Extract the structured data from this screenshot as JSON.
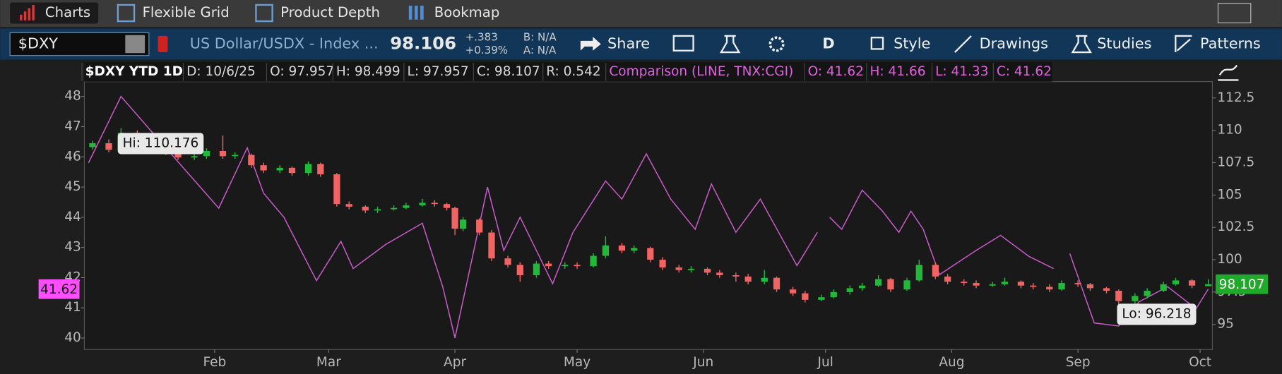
{
  "tabs": [
    "Charts",
    "Flexible Grid",
    "Product Depth",
    "Bookmap"
  ],
  "toolbar": {
    "symbol": "$DXY",
    "description": "US Dollar/USDX - Index ...",
    "last": "98.106",
    "change": "+.383",
    "change_pct": "+0.39%",
    "bid": "B: N/A",
    "ask": "A: N/A",
    "buttons": [
      "Share",
      "D",
      "Style",
      "Drawings",
      "Studies",
      "Patterns"
    ]
  },
  "header": {
    "date": "D: 10/6/25",
    "open": "O: 97.957",
    "high": "H: 98.499",
    "low": "L: 97.957",
    "close": "C: 98.107",
    "range": "R: 0.542",
    "cmp_open": "O: 41.62",
    "cmp_high": "H: 41.66",
    "cmp_low": "L: 41.33",
    "cmp_close": "C: 41.62"
  },
  "chart_data": {
    "type": "candlestick",
    "title": "$DXY YTD 1D",
    "up_color": "#22b83a",
    "down_color": "#f06464",
    "x": [
      2,
      6,
      9,
      13,
      16,
      20,
      23,
      27,
      30,
      34,
      37,
      41,
      44,
      48,
      51,
      55,
      58,
      62,
      65,
      69,
      72,
      76,
      79,
      83,
      86,
      89,
      91,
      93,
      97,
      100,
      104,
      107,
      111,
      114,
      118,
      121,
      125,
      128,
      132,
      135,
      139,
      142,
      146,
      149,
      153,
      156,
      160,
      163,
      167,
      170,
      174,
      177,
      181,
      184,
      188,
      191,
      195,
      198,
      202,
      205,
      209,
      212,
      216,
      219,
      223,
      226,
      230,
      233,
      237,
      240,
      244,
      247,
      251,
      254,
      258,
      261,
      265,
      268,
      272,
      276
    ],
    "candles": [
      [
        108.7,
        109.2,
        108.5,
        109.0
      ],
      [
        109.0,
        109.3,
        108.3,
        108.5
      ],
      [
        108.5,
        110.176,
        108.4,
        109.8
      ],
      [
        109.8,
        110.0,
        109.2,
        109.4
      ],
      [
        109.4,
        109.6,
        108.8,
        109.0
      ],
      [
        109.0,
        109.2,
        108.1,
        108.3
      ],
      [
        108.3,
        108.5,
        107.7,
        107.9
      ],
      [
        107.9,
        108.3,
        107.7,
        108.0
      ],
      [
        108.0,
        108.6,
        107.8,
        108.4
      ],
      [
        108.4,
        109.6,
        107.8,
        108.0
      ],
      [
        108.0,
        108.3,
        107.8,
        108.1
      ],
      [
        108.1,
        108.2,
        107.1,
        107.3
      ],
      [
        107.3,
        107.5,
        106.7,
        106.9
      ],
      [
        106.9,
        107.3,
        106.7,
        107.1
      ],
      [
        107.1,
        107.2,
        106.5,
        106.7
      ],
      [
        106.7,
        107.6,
        106.5,
        107.4
      ],
      [
        107.4,
        107.5,
        106.4,
        106.6
      ],
      [
        106.6,
        106.7,
        104.1,
        104.3
      ],
      [
        104.3,
        104.5,
        103.9,
        104.1
      ],
      [
        104.1,
        104.2,
        103.6,
        103.8
      ],
      [
        103.8,
        104.1,
        103.6,
        103.9
      ],
      [
        103.9,
        104.2,
        103.8,
        104.0
      ],
      [
        104.0,
        104.4,
        103.9,
        104.2
      ],
      [
        104.2,
        104.7,
        104.1,
        104.4
      ],
      [
        104.4,
        104.6,
        104.1,
        104.3
      ],
      [
        104.3,
        104.4,
        103.8,
        104.0
      ],
      [
        104.0,
        104.1,
        101.9,
        102.4
      ],
      [
        102.4,
        103.3,
        102.2,
        103.1
      ],
      [
        103.1,
        103.2,
        101.9,
        102.1
      ],
      [
        102.1,
        102.3,
        99.9,
        100.1
      ],
      [
        100.1,
        100.3,
        99.4,
        99.6
      ],
      [
        99.6,
        99.8,
        98.3,
        98.8
      ],
      [
        98.8,
        99.9,
        98.6,
        99.7
      ],
      [
        99.7,
        99.9,
        99.3,
        99.5
      ],
      [
        99.5,
        99.8,
        99.3,
        99.6
      ],
      [
        99.6,
        99.8,
        99.3,
        99.5
      ],
      [
        99.5,
        100.5,
        99.4,
        100.3
      ],
      [
        100.3,
        101.8,
        100.1,
        101.1
      ],
      [
        101.1,
        101.3,
        100.5,
        100.7
      ],
      [
        100.7,
        101.1,
        100.5,
        100.9
      ],
      [
        100.9,
        101.0,
        99.8,
        100.0
      ],
      [
        100.0,
        100.2,
        99.2,
        99.4
      ],
      [
        99.4,
        99.6,
        99.0,
        99.2
      ],
      [
        99.2,
        99.5,
        99.0,
        99.3
      ],
      [
        99.3,
        99.4,
        98.8,
        99.0
      ],
      [
        99.0,
        99.2,
        98.6,
        98.8
      ],
      [
        98.8,
        99.0,
        98.3,
        98.7
      ],
      [
        98.7,
        98.9,
        98.1,
        98.3
      ],
      [
        98.3,
        99.2,
        98.1,
        98.6
      ],
      [
        98.6,
        98.7,
        97.5,
        97.7
      ],
      [
        97.7,
        97.9,
        97.2,
        97.4
      ],
      [
        97.4,
        97.6,
        96.7,
        96.9
      ],
      [
        96.9,
        97.3,
        96.8,
        97.1
      ],
      [
        97.1,
        97.7,
        97.0,
        97.5
      ],
      [
        97.5,
        98.0,
        97.3,
        97.8
      ],
      [
        97.8,
        98.2,
        97.6,
        98.0
      ],
      [
        98.0,
        98.8,
        97.9,
        98.5
      ],
      [
        98.5,
        98.6,
        97.5,
        97.7
      ],
      [
        97.7,
        98.6,
        97.6,
        98.4
      ],
      [
        98.4,
        100.0,
        98.3,
        99.6
      ],
      [
        99.6,
        99.8,
        98.5,
        98.7
      ],
      [
        98.7,
        98.9,
        98.1,
        98.3
      ],
      [
        98.3,
        98.5,
        98.0,
        98.2
      ],
      [
        98.2,
        98.4,
        97.8,
        98.0
      ],
      [
        98.0,
        98.3,
        97.9,
        98.1
      ],
      [
        98.1,
        98.6,
        98.0,
        98.3
      ],
      [
        98.3,
        98.4,
        97.8,
        98.0
      ],
      [
        98.0,
        98.2,
        97.7,
        97.9
      ],
      [
        97.9,
        98.1,
        97.5,
        97.7
      ],
      [
        97.7,
        98.4,
        97.6,
        98.2
      ],
      [
        98.2,
        98.4,
        97.9,
        98.1
      ],
      [
        98.1,
        98.2,
        97.6,
        97.8
      ],
      [
        97.8,
        97.9,
        97.4,
        97.6
      ],
      [
        97.6,
        97.7,
        96.218,
        96.8
      ],
      [
        96.8,
        97.4,
        96.6,
        97.2
      ],
      [
        97.2,
        97.8,
        97.0,
        97.6
      ],
      [
        97.6,
        98.3,
        97.5,
        98.1
      ],
      [
        98.1,
        98.6,
        98.0,
        98.4
      ],
      [
        98.4,
        98.5,
        97.8,
        98.0
      ],
      [
        97.957,
        98.499,
        97.957,
        98.107
      ]
    ],
    "xlim": [
      0,
      277
    ],
    "xticks": [
      {
        "value": 32,
        "label": "Feb"
      },
      {
        "value": 60,
        "label": "Mar"
      },
      {
        "value": 91,
        "label": "Apr"
      },
      {
        "value": 121,
        "label": "May"
      },
      {
        "value": 152,
        "label": "Jun"
      },
      {
        "value": 182,
        "label": "Jul"
      },
      {
        "value": 213,
        "label": "Aug"
      },
      {
        "value": 244,
        "label": "Sep"
      },
      {
        "value": 274,
        "label": "Oct"
      }
    ],
    "ylim": [
      93.06,
      113.76
    ],
    "yticks": [
      95,
      97.5,
      100,
      102.5,
      105,
      107.5,
      110,
      112.5
    ],
    "y2lim": [
      39.62,
      48.49
    ],
    "y2ticks": [
      40,
      41,
      42,
      43,
      44,
      45,
      46,
      47,
      48
    ],
    "series": [
      {
        "name": "Comparison (LINE, TNX:CGI)",
        "color": "#c95ac9",
        "axis": "y2",
        "x": [
          1,
          9,
          20,
          33,
          40,
          44,
          49,
          57,
          63,
          66,
          74,
          83,
          88,
          91,
          99,
          103,
          107,
          115,
          120,
          128,
          132,
          138,
          144,
          150,
          154,
          160,
          166,
          175,
          180,
          181,
          183,
          186,
          191,
          196,
          200,
          203,
          206,
          210,
          219,
          225,
          232,
          238,
          240,
          242,
          248,
          254,
          259,
          266,
          273,
          276
        ],
        "values": [
          45.8,
          48.0,
          46.3,
          44.3,
          46.3,
          44.8,
          44.0,
          41.9,
          43.2,
          42.3,
          43.1,
          43.8,
          41.7,
          40.0,
          45.0,
          42.9,
          44.0,
          41.8,
          43.5,
          45.2,
          44.6,
          46.1,
          44.6,
          43.6,
          45.1,
          43.5,
          44.6,
          42.4,
          43.5,
          null,
          44.0,
          43.6,
          44.9,
          44.2,
          43.5,
          44.2,
          43.6,
          42.1,
          42.9,
          43.4,
          42.7,
          42.3,
          null,
          42.8,
          40.5,
          40.4,
          41.2,
          41.7,
          40.97,
          41.62
        ]
      }
    ],
    "annotations": [
      {
        "text": "Hi: 110.176",
        "x": 9,
        "y": 110.176
      },
      {
        "text": "Lo: 96.218",
        "x": 254,
        "y": 96.218
      }
    ],
    "last_labels": [
      {
        "text": "41.62",
        "value": 41.62,
        "axis": "y2",
        "color": "#ff4dff"
      },
      {
        "text": "98.107",
        "value": 98.107,
        "axis": "y",
        "color": "#1faa2a"
      }
    ]
  }
}
